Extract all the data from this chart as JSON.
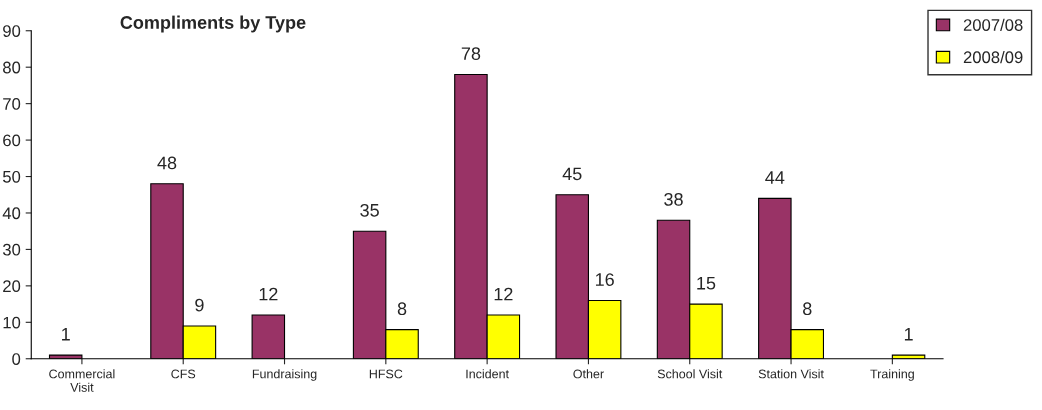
{
  "chart_data": {
    "type": "bar",
    "title": "Compliments by Type",
    "categories": [
      "Commercial\nVisit",
      "CFS",
      "Fundraising",
      "HFSC",
      "Incident",
      "Other",
      "School Visit",
      "Station Visit",
      "Training"
    ],
    "series": [
      {
        "name": "2007/08",
        "color": "#993366",
        "values": [
          1,
          48,
          12,
          35,
          78,
          45,
          38,
          44,
          null
        ]
      },
      {
        "name": "2008/09",
        "color": "#ffff00",
        "values": [
          null,
          9,
          null,
          8,
          12,
          16,
          15,
          8,
          1
        ]
      }
    ],
    "ylim": [
      0,
      90
    ],
    "yticks": [
      0,
      10,
      20,
      30,
      40,
      50,
      60,
      70,
      80,
      90
    ],
    "grid": false,
    "legend": "top right",
    "data_labels": true
  }
}
